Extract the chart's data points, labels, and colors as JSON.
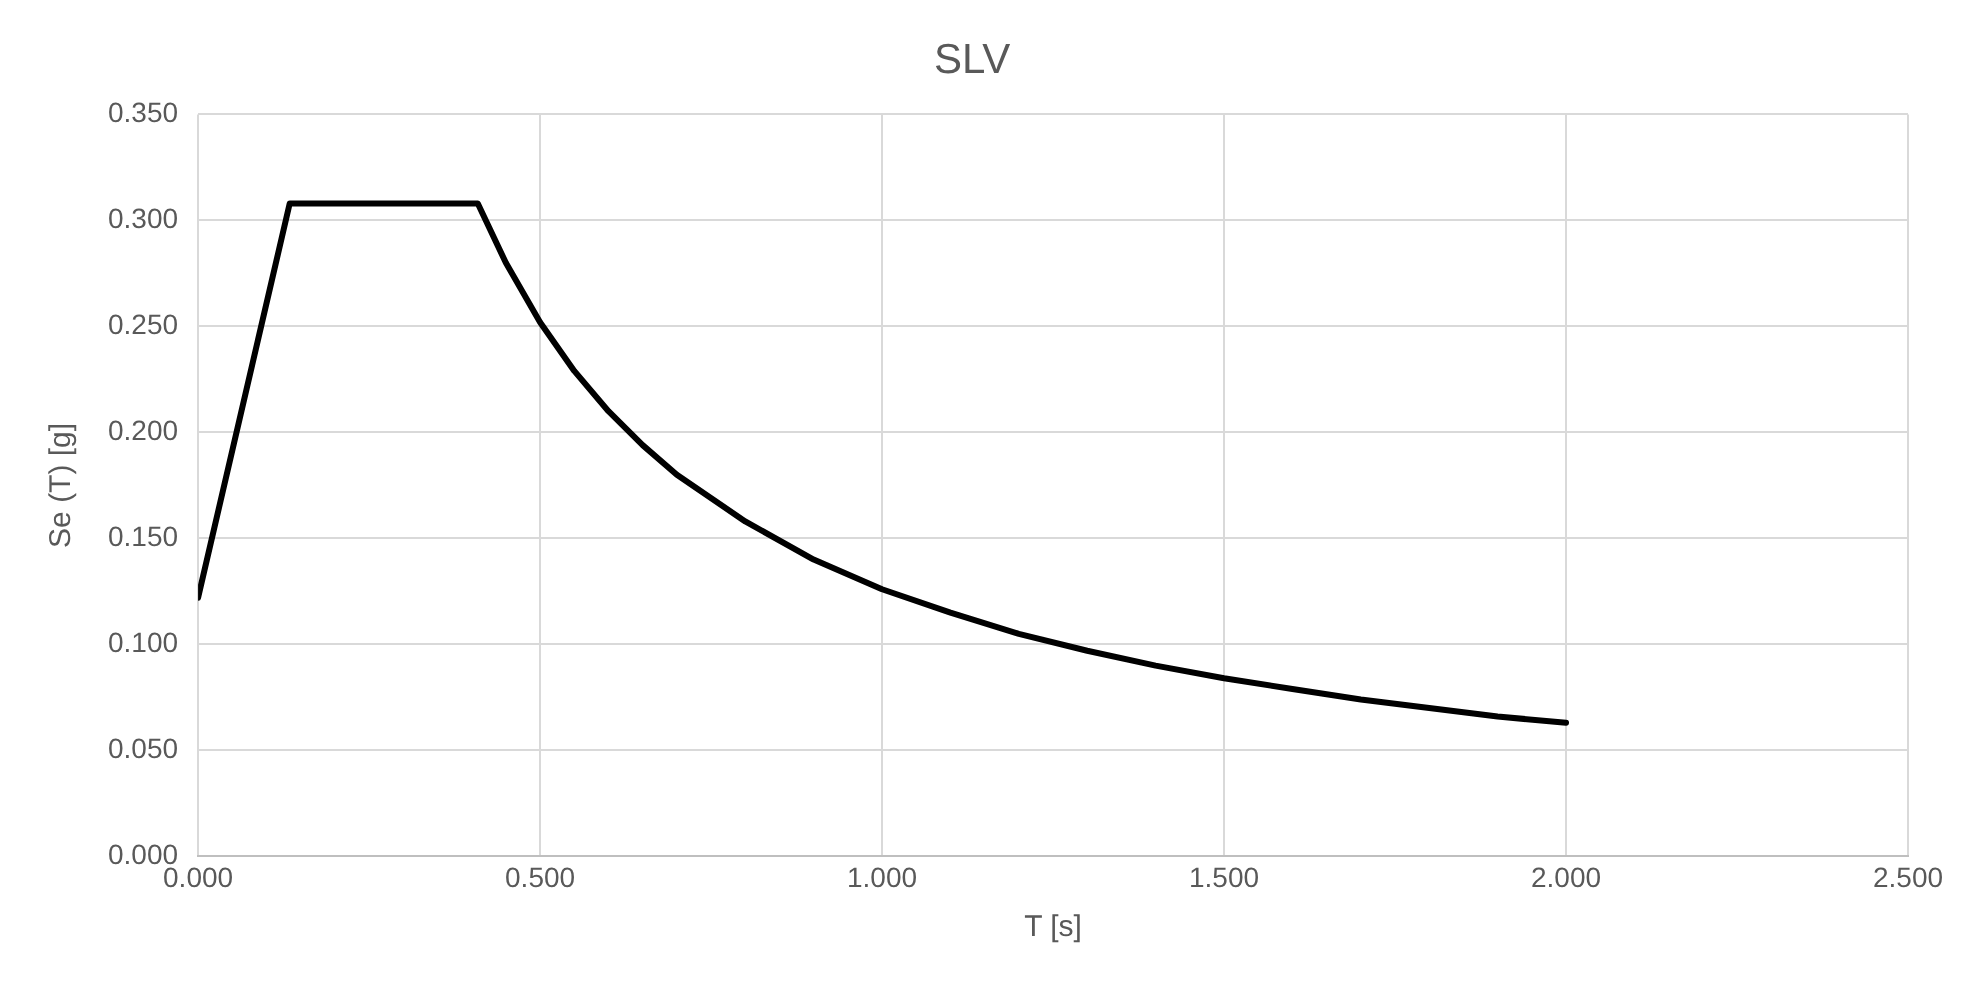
{
  "chart_data": {
    "type": "line",
    "title": "SLV",
    "xlabel": "T [s]",
    "ylabel": "Se (T) [g]",
    "x": [
      0,
      0.134,
      0.409,
      0.45,
      0.5,
      0.55,
      0.6,
      0.65,
      0.7,
      0.8,
      0.9,
      1.0,
      1.1,
      1.2,
      1.3,
      1.4,
      1.5,
      1.6,
      1.7,
      1.8,
      1.9,
      2.0
    ],
    "series": [
      {
        "color": "#000000",
        "values": [
          0.122,
          0.308,
          0.308,
          0.28,
          0.252,
          0.229,
          0.21,
          0.194,
          0.18,
          0.158,
          0.14,
          0.126,
          0.115,
          0.105,
          0.097,
          0.09,
          0.084,
          0.079,
          0.074,
          0.07,
          0.066,
          0.063
        ]
      }
    ],
    "xlim": [
      0,
      2.5
    ],
    "xticks": [
      {
        "value": 0,
        "label": "0.000"
      },
      {
        "value": 0.5,
        "label": "0.500"
      },
      {
        "value": 1,
        "label": "1.000"
      },
      {
        "value": 1.5,
        "label": "1.500"
      },
      {
        "value": 2,
        "label": "2.000"
      },
      {
        "value": 2.5,
        "label": "2.500"
      }
    ],
    "ylim": [
      0,
      0.35
    ],
    "yticks": [
      {
        "value": 0,
        "label": "0.000"
      },
      {
        "value": 0.05,
        "label": "0.050"
      },
      {
        "value": 0.1,
        "label": "0.100"
      },
      {
        "value": 0.15,
        "label": "0.150"
      },
      {
        "value": 0.2,
        "label": "0.200"
      },
      {
        "value": 0.25,
        "label": "0.250"
      },
      {
        "value": 0.3,
        "label": "0.300"
      },
      {
        "value": 0.35,
        "label": "0.350"
      }
    ],
    "grid": true,
    "legend": false,
    "marker": "none",
    "line_style": "solid"
  }
}
